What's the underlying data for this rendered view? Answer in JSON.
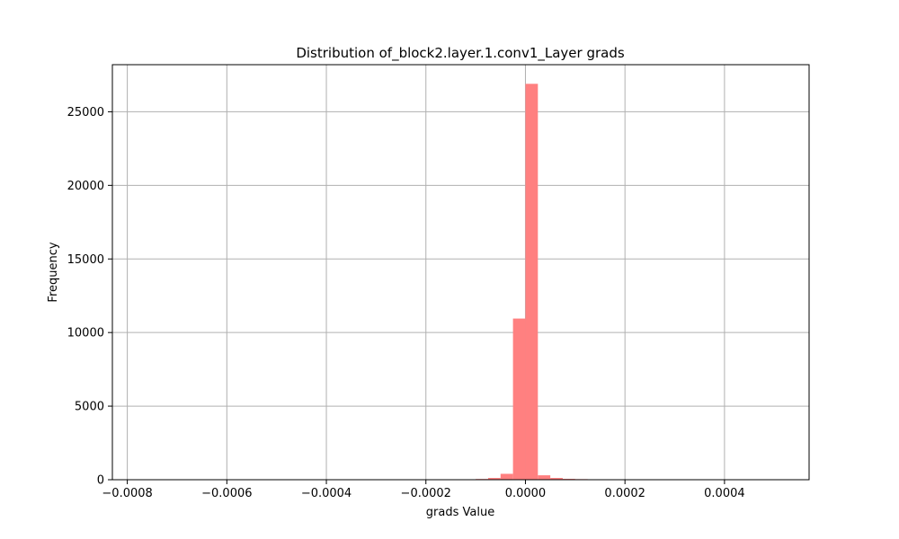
{
  "chart_data": {
    "type": "bar",
    "title": "Distribution of_block2.layer.1.conv1_Layer grads",
    "xlabel": "grads Value",
    "ylabel": "Frequency",
    "xlim": [
      -0.00083,
      0.00057
    ],
    "ylim": [
      0,
      28200
    ],
    "x_ticks": [
      -0.0008,
      -0.0006,
      -0.0004,
      -0.0002,
      0.0,
      0.0002,
      0.0004
    ],
    "x_tick_labels": [
      "−0.0008",
      "−0.0006",
      "−0.0004",
      "−0.0002",
      "0.0000",
      "0.0002",
      "0.0004"
    ],
    "y_ticks": [
      0,
      5000,
      10000,
      15000,
      20000,
      25000
    ],
    "y_tick_labels": [
      "0",
      "5000",
      "10000",
      "15000",
      "20000",
      "25000"
    ],
    "grid": true,
    "bar_color": "#ff8080",
    "bins": [
      {
        "x0": -0.00015,
        "x1": -0.000125,
        "count": 20
      },
      {
        "x0": -0.000125,
        "x1": -0.0001,
        "count": 30
      },
      {
        "x0": -0.0001,
        "x1": -7.5e-05,
        "count": 50
      },
      {
        "x0": -7.5e-05,
        "x1": -5e-05,
        "count": 120
      },
      {
        "x0": -5e-05,
        "x1": -2.5e-05,
        "count": 400
      },
      {
        "x0": -2.5e-05,
        "x1": 0.0,
        "count": 10950
      },
      {
        "x0": 0.0,
        "x1": 2.5e-05,
        "count": 26900
      },
      {
        "x0": 2.5e-05,
        "x1": 5e-05,
        "count": 300
      },
      {
        "x0": 5e-05,
        "x1": 7.5e-05,
        "count": 120
      },
      {
        "x0": 7.5e-05,
        "x1": 0.0001,
        "count": 60
      },
      {
        "x0": 0.0001,
        "x1": 0.000125,
        "count": 40
      }
    ]
  }
}
